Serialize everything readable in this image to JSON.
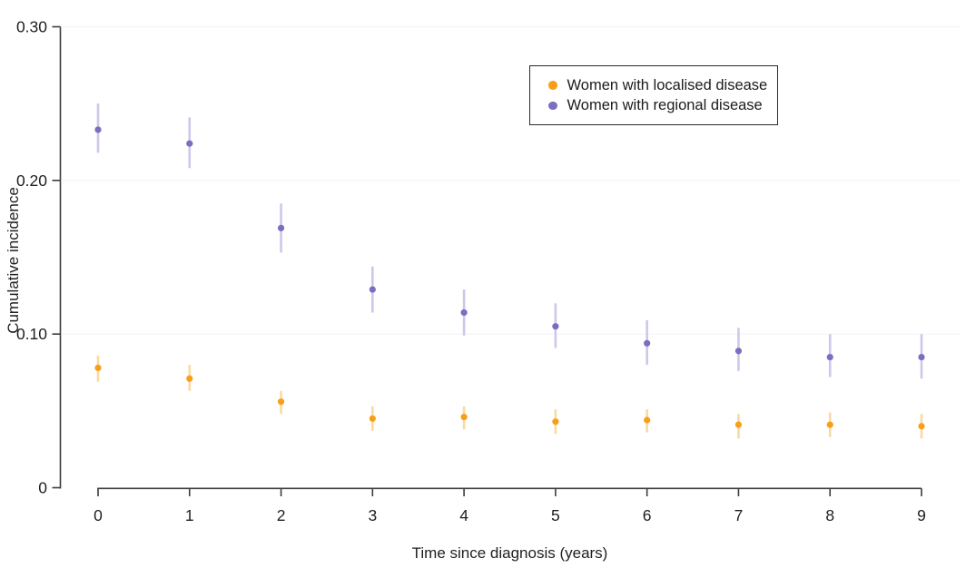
{
  "chart_data": {
    "type": "scatter",
    "title": "",
    "xlabel": "Time since diagnosis (years)",
    "ylabel": "Cumulative incidence",
    "x": [
      0,
      1,
      2,
      3,
      4,
      5,
      6,
      7,
      8,
      9
    ],
    "x_tick_labels": [
      "0",
      "1",
      "2",
      "3",
      "4",
      "5",
      "6",
      "7",
      "8",
      "9"
    ],
    "xlim": [
      0,
      9
    ],
    "ylim": [
      0,
      0.3
    ],
    "y_ticks": [
      0,
      0.1,
      0.2,
      0.3
    ],
    "y_tick_labels": [
      "0",
      "0.10",
      "0.20",
      "0.30"
    ],
    "grid": "horizontal gridlines at y ticks, very light gray",
    "legend_position": "top-right inside plot, boxed",
    "error_bars": true,
    "series": [
      {
        "name": "Women with localised disease",
        "color": "#F7A017",
        "errorbar_color": "#FBD9A0",
        "values": [
          0.078,
          0.071,
          0.056,
          0.045,
          0.046,
          0.043,
          0.044,
          0.041,
          0.041,
          0.04
        ],
        "ci_low": [
          0.069,
          0.063,
          0.048,
          0.037,
          0.038,
          0.035,
          0.036,
          0.032,
          0.033,
          0.032
        ],
        "ci_high": [
          0.086,
          0.08,
          0.063,
          0.053,
          0.053,
          0.051,
          0.051,
          0.048,
          0.049,
          0.048
        ]
      },
      {
        "name": "Women with regional disease",
        "color": "#7D6CC2",
        "errorbar_color": "#CEC7EA",
        "values": [
          0.233,
          0.224,
          0.169,
          0.129,
          0.114,
          0.105,
          0.094,
          0.089,
          0.085,
          0.085
        ],
        "ci_low": [
          0.218,
          0.208,
          0.153,
          0.114,
          0.099,
          0.091,
          0.08,
          0.076,
          0.072,
          0.071
        ],
        "ci_high": [
          0.25,
          0.241,
          0.185,
          0.144,
          0.129,
          0.12,
          0.109,
          0.104,
          0.1,
          0.1
        ]
      }
    ],
    "colors": {
      "axis": "#3c3c3c",
      "tick_label": "#1e1e1e",
      "gridline": "#f2f1f5",
      "legend_border": "#2a2a2a",
      "background": "#ffffff"
    }
  }
}
